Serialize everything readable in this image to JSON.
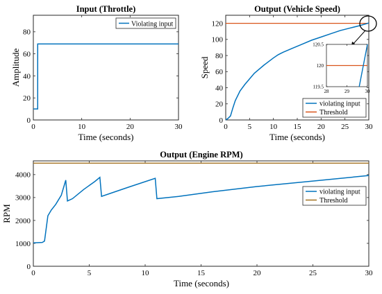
{
  "chart_data": [
    {
      "id": "throttle",
      "type": "line",
      "title": "Input (Throttle)",
      "xlabel": "Time (seconds)",
      "ylabel": "Amplitude",
      "xlim": [
        0,
        30
      ],
      "ylim": [
        0,
        95
      ],
      "xticks": [
        "0",
        "10",
        "20",
        "30"
      ],
      "yticks": [
        "0",
        "20",
        "40",
        "60",
        "80"
      ],
      "grid": false,
      "legend_position": "top-right",
      "series": [
        {
          "name": "Violating input",
          "color": "#0072BD",
          "x": [
            0,
            0.9,
            0.9,
            30
          ],
          "y": [
            10,
            10,
            69,
            69
          ]
        }
      ]
    },
    {
      "id": "speed",
      "type": "line",
      "title": "Output (Vehicle Speed)",
      "xlabel": "Time (seconds)",
      "ylabel": "Speed",
      "xlim": [
        0,
        30
      ],
      "ylim": [
        0,
        130
      ],
      "xticks": [
        "0",
        "5",
        "10",
        "15",
        "20",
        "25",
        "30"
      ],
      "yticks": [
        "0",
        "20",
        "40",
        "60",
        "80",
        "100",
        "120"
      ],
      "grid": false,
      "legend_position": "bottom-right",
      "series": [
        {
          "name": "violating input",
          "color": "#0072BD",
          "x": [
            0,
            0.5,
            1,
            1.5,
            2,
            3,
            4,
            5,
            6,
            8,
            10,
            11,
            12,
            14,
            16,
            18,
            20,
            22,
            24,
            26,
            28,
            29.5,
            30
          ],
          "y": [
            0,
            2,
            5,
            15,
            24,
            36,
            44,
            51,
            58,
            68,
            77,
            81,
            84,
            89,
            94,
            99,
            103,
            107,
            111,
            114,
            117,
            119.5,
            120.5
          ]
        },
        {
          "name": "Threshold",
          "color": "#D95319",
          "x": [
            0,
            30
          ],
          "y": [
            120,
            120
          ]
        }
      ],
      "inset": {
        "xlim": [
          28,
          30
        ],
        "ylim": [
          119.5,
          120.5
        ],
        "xticks": [
          "28",
          "29",
          "30"
        ],
        "yticks": [
          "119.5",
          "120",
          "120.5"
        ],
        "series": [
          {
            "color": "#0072BD",
            "x": [
              29.6,
              30
            ],
            "y": [
              119.5,
              120.5
            ]
          },
          {
            "color": "#D95319",
            "x": [
              28,
              30
            ],
            "y": [
              120,
              120
            ]
          }
        ]
      }
    },
    {
      "id": "rpm",
      "type": "line",
      "title": "Output (Engine RPM)",
      "xlabel": "Time (seconds)",
      "ylabel": "RPM",
      "xlim": [
        0,
        30
      ],
      "ylim": [
        0,
        4600
      ],
      "xticks": [
        "0",
        "5",
        "10",
        "15",
        "20",
        "25",
        "30"
      ],
      "yticks": [
        "0",
        "1000",
        "2000",
        "3000",
        "4000"
      ],
      "grid": false,
      "legend_position": "top-right",
      "series": [
        {
          "name": "violating input",
          "color": "#0072BD",
          "x": [
            0,
            0.8,
            1,
            1.3,
            1.6,
            2,
            2.5,
            2.9,
            3.05,
            3.5,
            4.5,
            5.5,
            5.95,
            6.1,
            7,
            8.5,
            10.9,
            11.05,
            13,
            16,
            20,
            25,
            30
          ],
          "y": [
            1020,
            1040,
            1100,
            2200,
            2450,
            2700,
            3100,
            3760,
            2850,
            2950,
            3350,
            3700,
            3880,
            3050,
            3200,
            3450,
            3840,
            2950,
            3050,
            3250,
            3480,
            3720,
            3960
          ]
        },
        {
          "name": "Threshold",
          "color": "#A2701E",
          "x": [
            0,
            30
          ],
          "y": [
            4500,
            4500
          ]
        }
      ]
    }
  ]
}
